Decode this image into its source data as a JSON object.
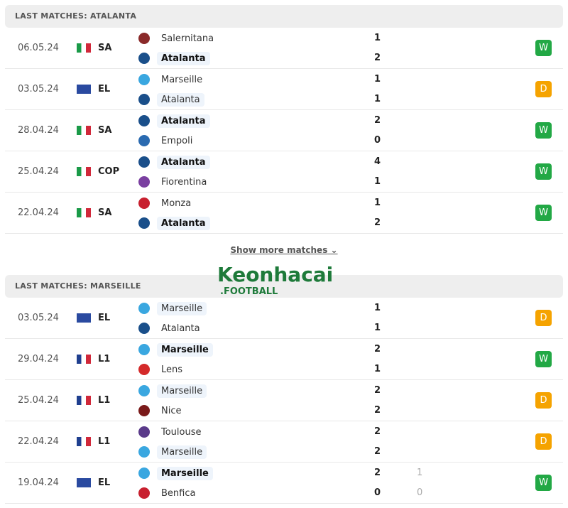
{
  "colors": {
    "win": "#22a845",
    "draw": "#f5a300"
  },
  "sections": [
    {
      "title": "LAST MATCHES: ATALANTA",
      "focus": "Atalanta",
      "matches": [
        {
          "date": "06.05.24",
          "flag": "italy",
          "comp": "SA",
          "home": "Salernitana",
          "away": "Atalanta",
          "hs": "1",
          "as": "2",
          "result": "W",
          "winner": "away"
        },
        {
          "date": "03.05.24",
          "flag": "europe",
          "comp": "EL",
          "home": "Marseille",
          "away": "Atalanta",
          "hs": "1",
          "as": "1",
          "result": "D",
          "winner": ""
        },
        {
          "date": "28.04.24",
          "flag": "italy",
          "comp": "SA",
          "home": "Atalanta",
          "away": "Empoli",
          "hs": "2",
          "as": "0",
          "result": "W",
          "winner": "home"
        },
        {
          "date": "25.04.24",
          "flag": "italy",
          "comp": "COP",
          "home": "Atalanta",
          "away": "Fiorentina",
          "hs": "4",
          "as": "1",
          "result": "W",
          "winner": "home"
        },
        {
          "date": "22.04.24",
          "flag": "italy",
          "comp": "SA",
          "home": "Monza",
          "away": "Atalanta",
          "hs": "1",
          "as": "2",
          "result": "W",
          "winner": "away"
        }
      ]
    },
    {
      "title": "LAST MATCHES: MARSEILLE",
      "focus": "Marseille",
      "matches": [
        {
          "date": "03.05.24",
          "flag": "europe",
          "comp": "EL",
          "home": "Marseille",
          "away": "Atalanta",
          "hs": "1",
          "as": "1",
          "result": "D",
          "winner": ""
        },
        {
          "date": "29.04.24",
          "flag": "france",
          "comp": "L1",
          "home": "Marseille",
          "away": "Lens",
          "hs": "2",
          "as": "1",
          "result": "W",
          "winner": "home"
        },
        {
          "date": "25.04.24",
          "flag": "france",
          "comp": "L1",
          "home": "Marseille",
          "away": "Nice",
          "hs": "2",
          "as": "2",
          "result": "D",
          "winner": ""
        },
        {
          "date": "22.04.24",
          "flag": "france",
          "comp": "L1",
          "home": "Toulouse",
          "away": "Marseille",
          "hs": "2",
          "as": "2",
          "result": "D",
          "winner": ""
        },
        {
          "date": "19.04.24",
          "flag": "europe",
          "comp": "EL",
          "home": "Marseille",
          "away": "Benfica",
          "hs": "2",
          "as": "0",
          "hs2": "1",
          "as2": "0",
          "result": "W",
          "winner": "home"
        }
      ]
    }
  ],
  "show_more": "Show more matches",
  "watermark": {
    "name": "Keonhacai",
    "sub": ".FOOTBALL"
  }
}
